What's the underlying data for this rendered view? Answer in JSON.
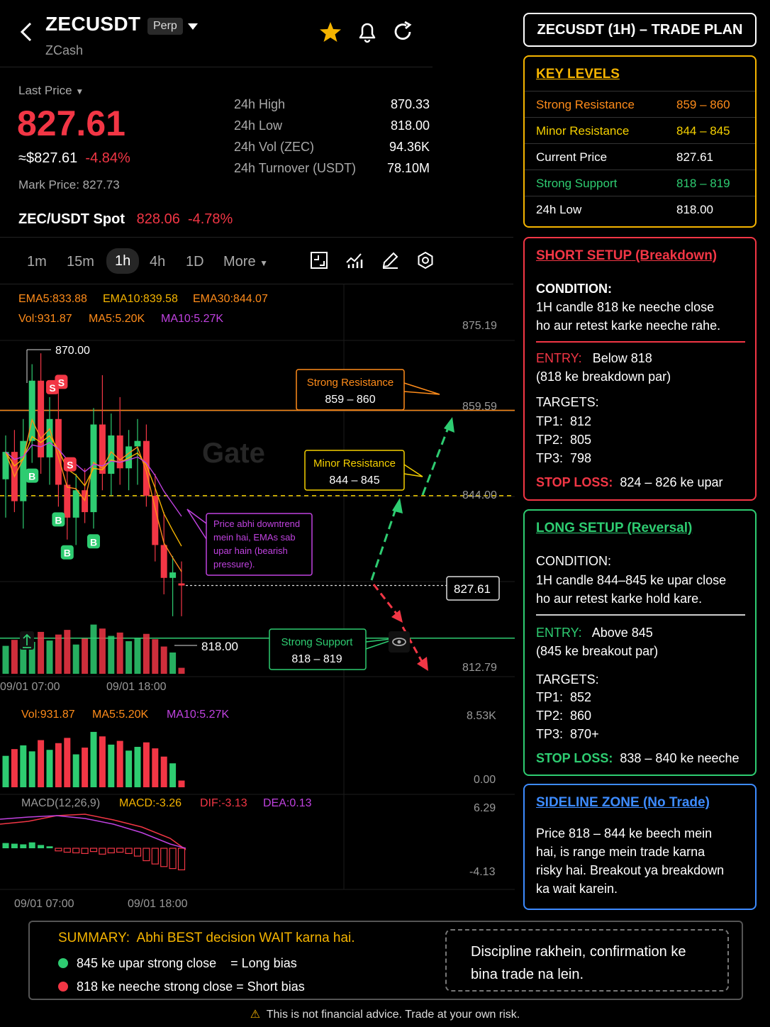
{
  "header": {
    "symbol": "ZECUSDT",
    "contract_type": "Perp",
    "name": "ZCash",
    "icons": [
      "back-icon",
      "star-icon",
      "bell-icon",
      "refresh-icon"
    ]
  },
  "ticker": {
    "last_price_label": "Last Price",
    "last_price": "827.61",
    "usd_price": "≈$827.61",
    "change_pct": "-4.84%",
    "mark_price": "Mark Price: 827.73",
    "stats": [
      {
        "label": "24h High",
        "value": "870.33"
      },
      {
        "label": "24h Low",
        "value": "818.00"
      },
      {
        "label": "24h Vol (ZEC)",
        "value": "94.36K"
      },
      {
        "label": "24h Turnover (USDT)",
        "value": "78.10M"
      }
    ],
    "spot_label": "ZEC/USDT Spot",
    "spot_price": "828.06",
    "spot_change": "-4.78%"
  },
  "timeframes": {
    "tabs": [
      "1m",
      "15m",
      "1h",
      "4h",
      "1D"
    ],
    "active": "1h",
    "more_label": "More"
  },
  "indicators": {
    "ema5": "EMA5:833.88",
    "ema10": "EMA10:839.58",
    "ema30": "EMA30:844.07",
    "vol": "Vol:931.87",
    "ma5": "MA5:5.20K",
    "ma10": "MA10:5.27K",
    "macd_label": "MACD(12,26,9)",
    "macd": "MACD:-3.26",
    "dif": "DIF:-3.13",
    "dea": "DEA:0.13"
  },
  "chart_data": {
    "type": "candlestick",
    "price_axis": [
      "875.19",
      "859.59",
      "844.00",
      "812.79"
    ],
    "current_price_tag": "827.61",
    "high_marker": "870.00",
    "low_marker": "818.00",
    "time_labels": [
      "09/01 07:00",
      "09/01 18:00"
    ],
    "volume_axis": [
      "8.53K",
      "0.00"
    ],
    "macd_axis": [
      "6.29",
      "-4.13"
    ],
    "levels": {
      "strong_resistance": 859.59,
      "minor_resistance": 844.0,
      "strong_support": 818.0,
      "current": 827.61
    },
    "candles": [
      {
        "o": 847,
        "h": 855,
        "l": 840,
        "c": 852
      },
      {
        "o": 852,
        "h": 856,
        "l": 841,
        "c": 843
      },
      {
        "o": 843,
        "h": 858,
        "l": 838,
        "c": 854
      },
      {
        "o": 854,
        "h": 868,
        "l": 850,
        "c": 865
      },
      {
        "o": 865,
        "h": 870,
        "l": 848,
        "c": 851
      },
      {
        "o": 851,
        "h": 862,
        "l": 846,
        "c": 858
      },
      {
        "o": 858,
        "h": 864,
        "l": 842,
        "c": 846
      },
      {
        "o": 846,
        "h": 850,
        "l": 836,
        "c": 840
      },
      {
        "o": 840,
        "h": 848,
        "l": 835,
        "c": 845
      },
      {
        "o": 845,
        "h": 849,
        "l": 839,
        "c": 841
      },
      {
        "o": 841,
        "h": 860,
        "l": 838,
        "c": 857
      },
      {
        "o": 857,
        "h": 866,
        "l": 845,
        "c": 848
      },
      {
        "o": 848,
        "h": 859,
        "l": 844,
        "c": 855
      },
      {
        "o": 855,
        "h": 862,
        "l": 846,
        "c": 849
      },
      {
        "o": 849,
        "h": 856,
        "l": 845,
        "c": 853
      },
      {
        "o": 853,
        "h": 858,
        "l": 846,
        "c": 854
      },
      {
        "o": 854,
        "h": 857,
        "l": 842,
        "c": 844
      },
      {
        "o": 844,
        "h": 848,
        "l": 832,
        "c": 835
      },
      {
        "o": 835,
        "h": 841,
        "l": 826,
        "c": 829
      },
      {
        "o": 829,
        "h": 833,
        "l": 822,
        "c": 830
      },
      {
        "o": 828,
        "h": 832,
        "l": 822,
        "c": 827.61
      }
    ],
    "volumes": [
      4.2,
      5.1,
      5.6,
      4.8,
      6.3,
      5.0,
      5.9,
      6.6,
      4.4,
      5.3,
      7.4,
      6.8,
      5.7,
      6.2,
      4.9,
      5.4,
      6.0,
      5.2,
      4.1,
      3.2,
      0.9
    ],
    "macd_hist": [
      0.8,
      0.7,
      0.6,
      0.9,
      0.5,
      0.3,
      -0.4,
      -0.6,
      -0.7,
      -0.8,
      -0.5,
      -0.9,
      -0.7,
      -0.6,
      -0.8,
      -1.2,
      -1.9,
      -2.4,
      -2.8,
      -3.1,
      -3.3
    ],
    "markers": [
      {
        "type": "S",
        "index": 5
      },
      {
        "type": "S",
        "index": 6
      },
      {
        "type": "S",
        "index": 7
      },
      {
        "type": "B",
        "index": 3
      },
      {
        "type": "B",
        "index": 6
      },
      {
        "type": "B",
        "index": 7
      },
      {
        "type": "B",
        "index": 10
      }
    ]
  },
  "annotations": {
    "strong_resistance_title": "Strong Resistance",
    "strong_resistance_range": "859 – 860",
    "minor_resistance_title": "Minor Resistance",
    "minor_resistance_range": "844 – 845",
    "strong_support_title": "Strong Support",
    "strong_support_range": "818 – 819",
    "downtrend_note": [
      "Price abhi downtrend",
      "mein hai, EMAs sab",
      "upar hain (bearish",
      "pressure)."
    ],
    "watermark": "Gate"
  },
  "plan": {
    "title": "ZECUSDT (1H) – TRADE PLAN",
    "key_levels": {
      "heading": "KEY LEVELS",
      "rows": [
        {
          "label": "Strong Resistance",
          "value": "859 – 860",
          "color": "#ff8c1a"
        },
        {
          "label": "Minor Resistance",
          "value": "844 – 845",
          "color": "#f5d000"
        },
        {
          "label": "Current Price",
          "value": "827.61",
          "color": "#ffffff"
        },
        {
          "label": "Strong Support",
          "value": "818 – 819",
          "color": "#2ecc71"
        },
        {
          "label": "24h Low",
          "value": "818.00",
          "color": "#ffffff"
        }
      ]
    },
    "short": {
      "heading": "SHORT SETUP",
      "heading_suffix": "(Breakdown)",
      "condition_label": "CONDITION:",
      "condition": [
        "1H candle 818 ke neeche close",
        "ho aur retest karke neeche rahe."
      ],
      "entry_label": "ENTRY:",
      "entry": "Below 818",
      "entry_note": "(818 ke breakdown par)",
      "targets_label": "TARGETS:",
      "targets": [
        {
          "k": "TP1:",
          "v": "812"
        },
        {
          "k": "TP2:",
          "v": "805"
        },
        {
          "k": "TP3:",
          "v": "798"
        }
      ],
      "stop_label": "STOP LOSS:",
      "stop": "824 – 826 ke upar"
    },
    "long": {
      "heading": "LONG SETUP",
      "heading_suffix": "(Reversal)",
      "condition_label": "CONDITION:",
      "condition": [
        "1H candle 844–845 ke upar close",
        "ho aur retest karke hold kare."
      ],
      "entry_label": "ENTRY:",
      "entry": "Above 845",
      "entry_note": "(845 ke breakout par)",
      "targets_label": "TARGETS:",
      "targets": [
        {
          "k": "TP1:",
          "v": "852"
        },
        {
          "k": "TP2:",
          "v": "860"
        },
        {
          "k": "TP3:",
          "v": "870+"
        }
      ],
      "stop_label": "STOP LOSS:",
      "stop": "838 – 840 ke neeche"
    },
    "sideline": {
      "heading": "SIDELINE ZONE",
      "heading_suffix": "(No Trade)",
      "text": [
        "Price 818 – 844 ke beech mein",
        "hai, is range mein trade karna",
        "risky hai. Breakout ya breakdown",
        "ka wait karein."
      ]
    }
  },
  "summary": {
    "label": "SUMMARY:",
    "text": "Abhi BEST decision WAIT karna hai.",
    "long_bias": "845 ke upar strong close    = Long bias",
    "short_bias": "818 ke neeche strong close = Short bias",
    "note": [
      "Discipline rakhein, confirmation ke",
      "bina trade na lein."
    ]
  },
  "disclaimer": "This is not financial advice. Trade at your own risk.",
  "colors": {
    "red": "#f23645",
    "green": "#2ecc71",
    "orange": "#ff8c1a",
    "yellow": "#f5b400",
    "purple": "#c042e0",
    "blue": "#3d8bff"
  }
}
